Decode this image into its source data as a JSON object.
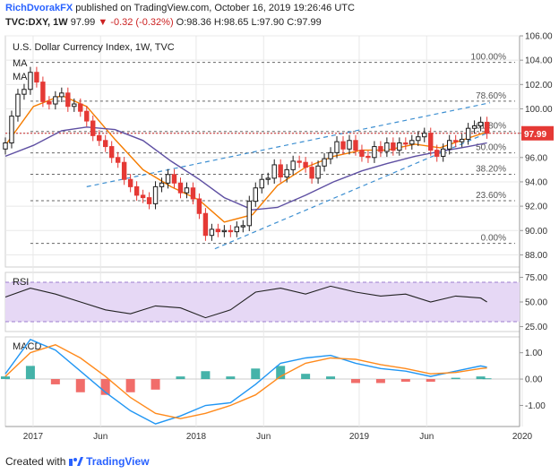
{
  "header": {
    "author": "RichDvorakFX",
    "published": "published on TradingView.com, October 16, 2019 19:26:46 UTC",
    "symbol": "TVC:DXY, 1W",
    "last": "97.99",
    "arrow": "▼",
    "change": "-0.32 (-0.32%)",
    "open": "O:98.36",
    "high": "H:98.65",
    "low": "L:97.90",
    "close": "C:97.99"
  },
  "footer": {
    "created_with": "Created with",
    "brand": "TradingView"
  },
  "colors": {
    "up": "#26a69a",
    "down": "#ef5350",
    "candle_up": "#1b1b1b",
    "candle_down": "#e53935",
    "ma_fast": "#f57c00",
    "ma_slow": "#5e4fa2",
    "trendline": "#3d8fd1",
    "price_line": "#c62828",
    "rsi_line": "#222222",
    "rsi_band": "#e6d8f5",
    "macd_line": "#2196f3",
    "signal_line": "#ff8a1c",
    "grid": "#e8e8e8",
    "fib": "#666666"
  },
  "chart_data": [
    {
      "type": "candlestick",
      "title": "U.S. Dollar Currency Index, 1W, TVC",
      "indicators": [
        "MA",
        "MA"
      ],
      "ylim": [
        87.0,
        106.0
      ],
      "y_ticks": [
        "106.00",
        "104.00",
        "102.00",
        "100.00",
        "98.00",
        "96.00",
        "94.00",
        "92.00",
        "90.00",
        "88.00"
      ],
      "x_ticks": [
        {
          "label": "2017",
          "date": "2017-01-01"
        },
        {
          "label": "Jun",
          "date": "2017-06-01"
        },
        {
          "label": "2018",
          "date": "2018-01-01"
        },
        {
          "label": "Jun",
          "date": "2018-06-01"
        },
        {
          "label": "2019",
          "date": "2019-01-01"
        },
        {
          "label": "Jun",
          "date": "2019-06-01"
        },
        {
          "label": "2020",
          "date": "2020-01-01"
        }
      ],
      "current_price": {
        "label": "97.99",
        "value": 97.99
      },
      "fibonacci": [
        {
          "label": "100.00%",
          "value": 103.82
        },
        {
          "label": "78.60%",
          "value": 100.63
        },
        {
          "label": "61.80%",
          "value": 98.14
        },
        {
          "label": "50.00%",
          "value": 96.38
        },
        {
          "label": "38.20%",
          "value": 94.62
        },
        {
          "label": "23.60%",
          "value": 92.45
        },
        {
          "label": "0.00%",
          "value": 88.94
        }
      ],
      "trendlines": [
        {
          "from": [
            "2017-05-01",
            93.6
          ],
          "to": [
            "2019-10-21",
            100.5
          ]
        },
        {
          "from": [
            "2018-02-12",
            88.5
          ],
          "to": [
            "2019-10-14",
            98.0
          ]
        }
      ],
      "series": [
        {
          "name": "price",
          "x": [
            "2016-10-31",
            "2016-11-14",
            "2016-11-28",
            "2016-12-12",
            "2016-12-26",
            "2017-01-09",
            "2017-01-23",
            "2017-02-06",
            "2017-02-20",
            "2017-03-06",
            "2017-03-20",
            "2017-04-03",
            "2017-04-17",
            "2017-05-01",
            "2017-05-15",
            "2017-05-29",
            "2017-06-12",
            "2017-06-26",
            "2017-07-10",
            "2017-07-24",
            "2017-08-07",
            "2017-08-21",
            "2017-09-04",
            "2017-09-18",
            "2017-10-02",
            "2017-10-16",
            "2017-10-30",
            "2017-11-13",
            "2017-11-27",
            "2017-12-11",
            "2017-12-25",
            "2018-01-08",
            "2018-01-22",
            "2018-02-05",
            "2018-02-19",
            "2018-03-05",
            "2018-03-19",
            "2018-04-02",
            "2018-04-16",
            "2018-04-30",
            "2018-05-14",
            "2018-05-28",
            "2018-06-11",
            "2018-06-25",
            "2018-07-09",
            "2018-07-23",
            "2018-08-06",
            "2018-08-20",
            "2018-09-03",
            "2018-09-17",
            "2018-10-01",
            "2018-10-15",
            "2018-10-29",
            "2018-11-12",
            "2018-11-26",
            "2018-12-10",
            "2018-12-24",
            "2019-01-07",
            "2019-01-21",
            "2019-02-04",
            "2019-02-18",
            "2019-03-04",
            "2019-03-18",
            "2019-04-01",
            "2019-04-15",
            "2019-04-29",
            "2019-05-13",
            "2019-05-27",
            "2019-06-10",
            "2019-06-24",
            "2019-07-08",
            "2019-07-22",
            "2019-08-05",
            "2019-08-19",
            "2019-09-02",
            "2019-09-16",
            "2019-09-30",
            "2019-10-14"
          ],
          "values": [
            97.2,
            99.4,
            101.2,
            101.6,
            103.0,
            102.2,
            100.6,
            100.4,
            101.0,
            101.3,
            100.2,
            100.4,
            99.8,
            99.0,
            97.8,
            97.4,
            96.9,
            96.0,
            95.6,
            94.2,
            93.6,
            92.9,
            92.7,
            92.2,
            93.6,
            93.9,
            94.6,
            93.9,
            93.1,
            93.5,
            92.6,
            91.4,
            89.6,
            90.1,
            89.9,
            90.0,
            89.9,
            90.3,
            90.4,
            92.4,
            93.5,
            94.2,
            94.3,
            95.4,
            94.4,
            95.0,
            95.7,
            95.6,
            95.2,
            94.3,
            95.3,
            95.9,
            96.4,
            97.3,
            96.7,
            97.4,
            96.6,
            96.1,
            96.0,
            96.9,
            96.5,
            97.2,
            96.6,
            97.2,
            97.1,
            97.4,
            97.7,
            98.0,
            96.6,
            96.1,
            96.7,
            97.4,
            97.3,
            97.5,
            98.4,
            98.6,
            98.9,
            97.99
          ]
        },
        {
          "name": "MA",
          "x": [
            "2016-10-31",
            "2017-01-02",
            "2017-03-06",
            "2017-05-01",
            "2017-07-03",
            "2017-09-04",
            "2017-11-06",
            "2018-01-08",
            "2018-03-05",
            "2018-05-07",
            "2018-07-02",
            "2018-09-03",
            "2018-11-05",
            "2019-01-07",
            "2019-03-04",
            "2019-05-06",
            "2019-07-01",
            "2019-09-02",
            "2019-10-14"
          ],
          "values": [
            97.0,
            100.2,
            101.1,
            100.2,
            97.5,
            95.0,
            93.6,
            92.5,
            90.7,
            91.3,
            93.7,
            95.2,
            96.1,
            96.6,
            96.6,
            97.1,
            96.8,
            97.6,
            98.1
          ]
        },
        {
          "name": "MA",
          "x": [
            "2016-10-31",
            "2017-01-02",
            "2017-03-06",
            "2017-05-01",
            "2017-07-03",
            "2017-09-04",
            "2017-11-06",
            "2018-01-08",
            "2018-03-05",
            "2018-05-07",
            "2018-07-02",
            "2018-09-03",
            "2018-11-05",
            "2019-01-07",
            "2019-03-04",
            "2019-05-06",
            "2019-07-01",
            "2019-09-02",
            "2019-10-14"
          ],
          "values": [
            96.1,
            97.0,
            98.2,
            98.5,
            98.3,
            97.4,
            95.7,
            94.2,
            92.7,
            91.7,
            91.9,
            92.9,
            94.0,
            94.9,
            95.5,
            96.1,
            96.5,
            96.9,
            97.2
          ]
        }
      ]
    },
    {
      "type": "line",
      "title": "RSI",
      "ylim": [
        20,
        80
      ],
      "y_ticks": [
        "75.00",
        "50.00",
        "25.00"
      ],
      "band": [
        30,
        70
      ],
      "series": [
        {
          "name": "RSI",
          "x": [
            "2016-10-31",
            "2016-12-26",
            "2017-02-20",
            "2017-04-17",
            "2017-06-12",
            "2017-08-07",
            "2017-10-02",
            "2017-11-27",
            "2018-01-22",
            "2018-03-19",
            "2018-05-14",
            "2018-07-09",
            "2018-09-03",
            "2018-10-29",
            "2018-12-24",
            "2019-02-18",
            "2019-04-15",
            "2019-06-10",
            "2019-08-05",
            "2019-09-30",
            "2019-10-14"
          ],
          "values": [
            55,
            64,
            58,
            50,
            42,
            38,
            46,
            44,
            34,
            42,
            60,
            64,
            58,
            66,
            60,
            56,
            58,
            50,
            56,
            54,
            50
          ]
        }
      ]
    },
    {
      "type": "bar",
      "title": "MACD",
      "ylim": [
        -1.8,
        1.6
      ],
      "y_ticks": [
        "1.00",
        "0.00",
        "-1.00"
      ],
      "x": [
        "2016-10-31",
        "2016-12-26",
        "2017-02-20",
        "2017-04-17",
        "2017-06-12",
        "2017-08-07",
        "2017-10-02",
        "2017-11-27",
        "2018-01-22",
        "2018-03-19",
        "2018-05-14",
        "2018-07-09",
        "2018-09-03",
        "2018-10-29",
        "2018-12-24",
        "2019-02-18",
        "2019-04-15",
        "2019-06-10",
        "2019-08-05",
        "2019-09-30",
        "2019-10-14"
      ],
      "series": [
        {
          "name": "MACD",
          "values": [
            0.2,
            1.5,
            1.1,
            0.3,
            -0.5,
            -1.2,
            -1.7,
            -1.4,
            -1.0,
            -0.9,
            -0.2,
            0.6,
            0.8,
            0.9,
            0.6,
            0.4,
            0.3,
            0.1,
            0.3,
            0.5,
            0.45
          ]
        },
        {
          "name": "Signal",
          "values": [
            0.1,
            1.0,
            1.3,
            0.8,
            0.1,
            -0.7,
            -1.3,
            -1.5,
            -1.3,
            -1.0,
            -0.6,
            0.1,
            0.6,
            0.8,
            0.75,
            0.55,
            0.4,
            0.2,
            0.25,
            0.4,
            0.42
          ]
        },
        {
          "name": "Histogram",
          "values": [
            0.1,
            0.5,
            -0.2,
            -0.5,
            -0.6,
            -0.5,
            -0.4,
            0.1,
            0.3,
            0.1,
            0.4,
            0.5,
            0.2,
            0.1,
            -0.15,
            -0.15,
            -0.1,
            -0.1,
            0.05,
            0.1,
            0.03
          ]
        }
      ]
    }
  ]
}
